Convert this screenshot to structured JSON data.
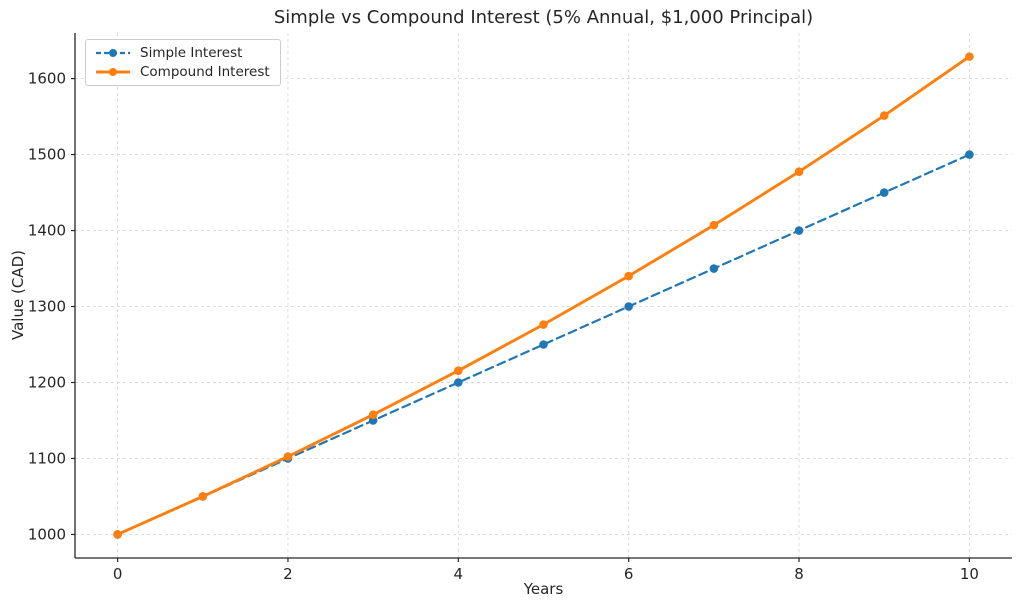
{
  "chart_data": {
    "type": "line",
    "title": "Simple vs Compound Interest (5% Annual, $1,000 Principal)",
    "xlabel": "Years",
    "ylabel": "Value (CAD)",
    "x": [
      0,
      1,
      2,
      3,
      4,
      5,
      6,
      7,
      8,
      9,
      10
    ],
    "series": [
      {
        "name": "Simple Interest",
        "color": "#1f77b4",
        "style": "dashed",
        "marker": "circle",
        "values": [
          1000,
          1050,
          1100,
          1150,
          1200,
          1250,
          1300,
          1350,
          1400,
          1450,
          1500
        ]
      },
      {
        "name": "Compound Interest",
        "color": "#ff7f0e",
        "style": "solid",
        "marker": "circle",
        "values": [
          1000,
          1050,
          1102.5,
          1157.63,
          1215.51,
          1276.28,
          1340.1,
          1407.1,
          1477.46,
          1551.33,
          1628.89
        ]
      }
    ],
    "xlim": [
      -0.5,
      10.5
    ],
    "ylim": [
      969,
      1660
    ],
    "x_ticks": [
      0,
      2,
      4,
      6,
      8,
      10
    ],
    "y_ticks": [
      1000,
      1100,
      1200,
      1300,
      1400,
      1500,
      1600
    ],
    "grid": true,
    "legend_position": "upper left",
    "grid_color": "#d9d9d9",
    "spine_color": "#262626",
    "text_color": "#262626",
    "background": "#ffffff"
  }
}
